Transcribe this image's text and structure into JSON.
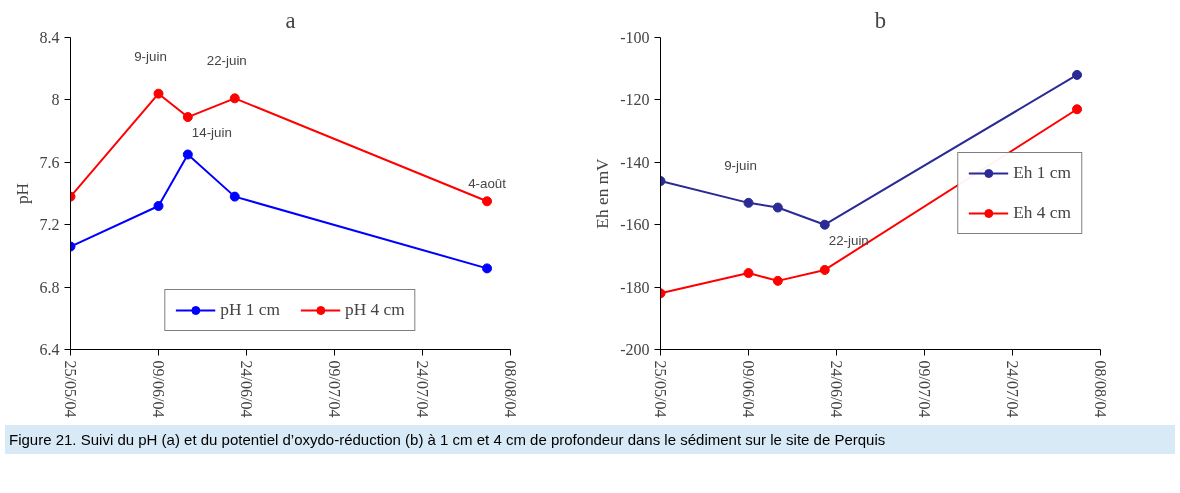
{
  "chart_data": [
    {
      "type": "line",
      "title": "a",
      "ylabel": "pH",
      "marker": "circle",
      "line_style": "solid",
      "grid": false,
      "legend": "bottom",
      "x": [
        "2004-05-25",
        "2004-06-09",
        "2004-06-14",
        "2004-06-22",
        "2004-08-04"
      ],
      "xlim": [
        "2004-05-25",
        "2004-08-08"
      ],
      "xticks": [
        {
          "value": "2004-05-25",
          "label": "25/05/04"
        },
        {
          "value": "2004-06-09",
          "label": "09/06/04"
        },
        {
          "value": "2004-06-24",
          "label": "24/06/04"
        },
        {
          "value": "2004-07-09",
          "label": "09/07/04"
        },
        {
          "value": "2004-07-24",
          "label": "24/07/04"
        },
        {
          "value": "2004-08-08",
          "label": "08/08/04"
        }
      ],
      "ylim": [
        6.4,
        8.4
      ],
      "yticks": [
        6.4,
        6.8,
        7.2,
        7.6,
        8,
        8.4
      ],
      "series": [
        {
          "name": "pH 1 cm",
          "color": "#0000ff",
          "values": [
            7.06,
            7.32,
            7.65,
            7.38,
            6.92
          ]
        },
        {
          "name": "pH 4 cm",
          "color": "#ff0000",
          "values": [
            7.38,
            8.04,
            7.89,
            8.01,
            7.35
          ]
        }
      ],
      "annotations": [
        {
          "text": "9-juin",
          "x": "2004-06-09",
          "y": 8.04
        },
        {
          "text": "14-juin",
          "x": "2004-06-14",
          "y": 7.89
        },
        {
          "text": "22-juin",
          "x": "2004-06-22",
          "y": 8.01
        },
        {
          "text": "4-août",
          "x": "2004-08-04",
          "y": 7.35
        },
        "Figure 21. Suivi du pH (a) et du potentiel d’oxydo-réduction (b) à 1 cm et 4 cm de profondeur dans le sédiment sur le site de Perquis"
      ]
    },
    {
      "type": "line",
      "title": "b",
      "ylabel": "Eh en mV",
      "marker": "circle",
      "line_style": "solid",
      "grid": false,
      "legend": "right",
      "x": [
        "2004-05-25",
        "2004-06-09",
        "2004-06-14",
        "2004-06-22",
        "2004-08-04"
      ],
      "xlim": [
        "2004-05-25",
        "2004-08-08"
      ],
      "xticks": [
        {
          "value": "2004-05-25",
          "label": "25/05/04"
        },
        {
          "value": "2004-06-09",
          "label": "09/06/04"
        },
        {
          "value": "2004-06-24",
          "label": "24/06/04"
        },
        {
          "value": "2004-07-09",
          "label": "09/07/04"
        },
        {
          "value": "2004-07-24",
          "label": "24/07/04"
        },
        {
          "value": "2004-08-08",
          "label": "08/08/04"
        }
      ],
      "ylim": [
        -200,
        -100
      ],
      "yticks": [
        -200,
        -180,
        -160,
        -140,
        -120,
        -100
      ],
      "series": [
        {
          "name": "Eh 1 cm",
          "color": "#2b2b96",
          "values": [
            -146,
            -153,
            -154.5,
            -160,
            -112
          ]
        },
        {
          "name": "Eh 4 cm",
          "color": "#ff0000",
          "values": [
            -182,
            -175.5,
            -178,
            -174.5,
            -123
          ]
        }
      ],
      "annotations": [
        {
          "text": "9-juin",
          "x": "2004-06-09",
          "y": -153
        },
        {
          "text": "22-juin",
          "x": "2004-06-22",
          "y": -160
        }
      ]
    }
  ]
}
